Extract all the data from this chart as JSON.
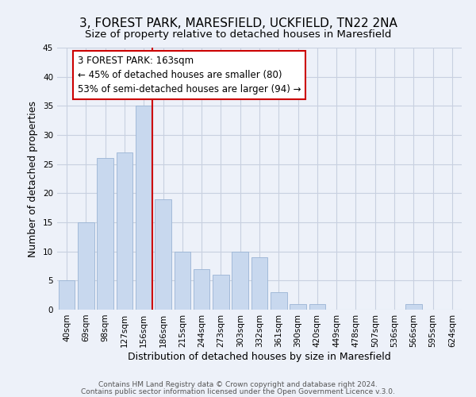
{
  "title": "3, FOREST PARK, MARESFIELD, UCKFIELD, TN22 2NA",
  "subtitle": "Size of property relative to detached houses in Maresfield",
  "xlabel": "Distribution of detached houses by size in Maresfield",
  "ylabel": "Number of detached properties",
  "bar_labels": [
    "40sqm",
    "69sqm",
    "98sqm",
    "127sqm",
    "156sqm",
    "186sqm",
    "215sqm",
    "244sqm",
    "273sqm",
    "303sqm",
    "332sqm",
    "361sqm",
    "390sqm",
    "420sqm",
    "449sqm",
    "478sqm",
    "507sqm",
    "536sqm",
    "566sqm",
    "595sqm",
    "624sqm"
  ],
  "bar_values": [
    5,
    15,
    26,
    27,
    35,
    19,
    10,
    7,
    6,
    10,
    9,
    3,
    1,
    1,
    0,
    0,
    0,
    0,
    1,
    0,
    0
  ],
  "bar_color": "#c8d8ee",
  "bar_edge_color": "#9ab4d4",
  "vline_color": "#cc0000",
  "vline_x_index": 4,
  "ylim": [
    0,
    45
  ],
  "yticks": [
    0,
    5,
    10,
    15,
    20,
    25,
    30,
    35,
    40,
    45
  ],
  "annotation_title": "3 FOREST PARK: 163sqm",
  "annotation_line1": "← 45% of detached houses are smaller (80)",
  "annotation_line2": "53% of semi-detached houses are larger (94) →",
  "footer1": "Contains HM Land Registry data © Crown copyright and database right 2024.",
  "footer2": "Contains public sector information licensed under the Open Government Licence v.3.0.",
  "bg_color": "#edf1f9",
  "grid_color": "#c8d0e0",
  "annotation_box_facecolor": "#ffffff",
  "annotation_box_edgecolor": "#cc0000",
  "title_fontsize": 11,
  "subtitle_fontsize": 9.5,
  "axis_label_fontsize": 9,
  "tick_fontsize": 7.5,
  "annotation_fontsize": 8.5,
  "footer_fontsize": 6.5
}
